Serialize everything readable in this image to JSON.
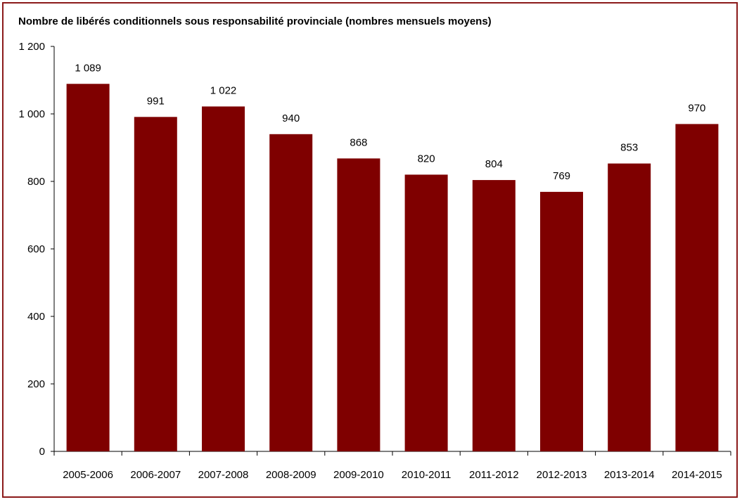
{
  "chart_data": {
    "type": "bar",
    "title": "Nombre de libérés conditionnels sous responsabilité provinciale (nombres mensuels moyens)",
    "xlabel": "",
    "ylabel": "",
    "categories": [
      "2005-2006",
      "2006-2007",
      "2007-2008",
      "2008-2009",
      "2009-2010",
      "2010-2011",
      "2011-2012",
      "2012-2013",
      "2013-2014",
      "2014-2015"
    ],
    "values": [
      1089,
      991,
      1022,
      940,
      868,
      820,
      804,
      769,
      853,
      970
    ],
    "value_labels": [
      "1 089",
      "991",
      "1 022",
      "940",
      "868",
      "820",
      "804",
      "769",
      "853",
      "970"
    ],
    "ylim": [
      0,
      1200
    ],
    "yticks": [
      0,
      200,
      400,
      600,
      800,
      1000,
      1200
    ],
    "ytick_labels": [
      "0",
      "200",
      "400",
      "600",
      "800",
      "1 000",
      "1 200"
    ],
    "grid": false,
    "legend": "none",
    "bar_color": "#7f0000",
    "frame_color": "#8b1a1a"
  }
}
